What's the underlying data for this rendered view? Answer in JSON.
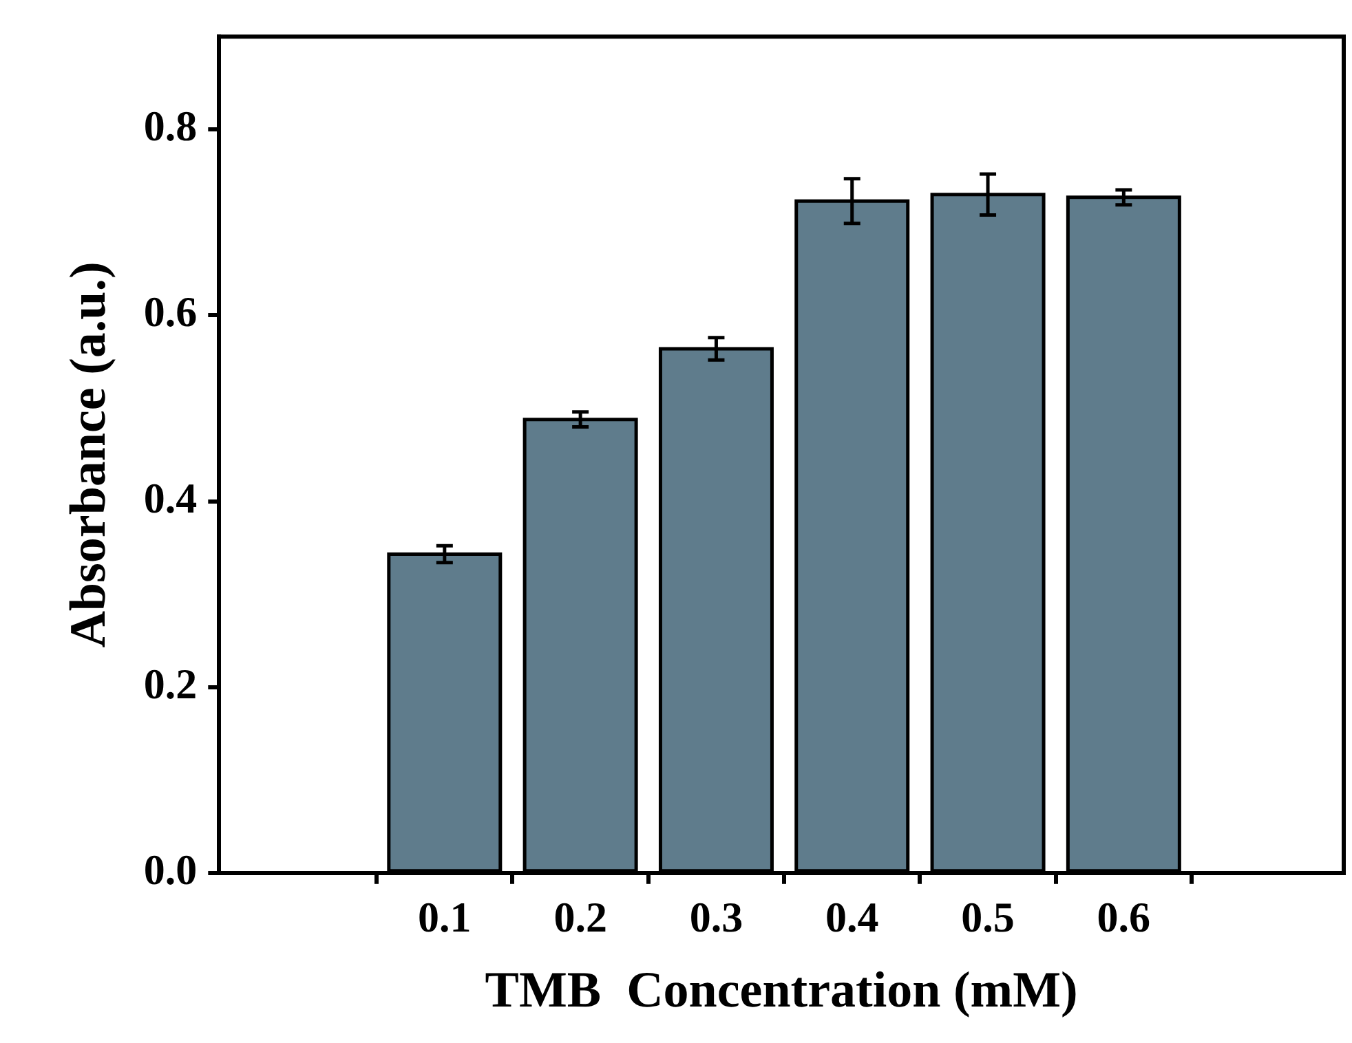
{
  "chart_data": {
    "type": "bar",
    "xlabel": "TMB  Concentration (mM)",
    "ylabel": "Absorbance (a.u.)",
    "categories": [
      "0.1",
      "0.2",
      "0.3",
      "0.4",
      "0.5",
      "0.6"
    ],
    "values": [
      0.343,
      0.488,
      0.564,
      0.723,
      0.73,
      0.727
    ],
    "errors": [
      0.009,
      0.008,
      0.012,
      0.024,
      0.022,
      0.008
    ],
    "color": "#5f7c8c",
    "ylim": [
      0,
      0.9
    ],
    "yticks": [
      {
        "value": 0,
        "label": "0.0"
      },
      0.2,
      0.4,
      0.6,
      0.8
    ],
    "grid": false,
    "legend": false
  }
}
